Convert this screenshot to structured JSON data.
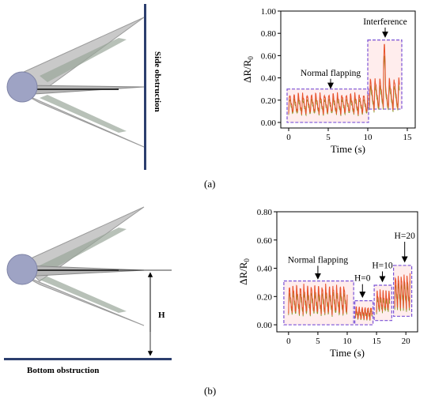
{
  "panel_labels": [
    "(a)",
    "(b)"
  ],
  "diagram_a": {
    "obstruction_label": "Side obstruction"
  },
  "diagram_b": {
    "obstruction_label": "Bottom obstruction",
    "height_label": "H"
  },
  "chart_data": [
    {
      "type": "line",
      "panel": "(a)",
      "xlabel": "Time (s)",
      "ylabel": "ΔR/R",
      "ylabel_sub": "0",
      "xlim": [
        -1,
        16
      ],
      "ylim": [
        -0.05,
        1.0
      ],
      "xticks": [
        0,
        5,
        10,
        15
      ],
      "yticks": [
        0.0,
        0.2,
        0.4,
        0.6,
        0.8,
        1.0
      ],
      "ytick_labels": [
        "0.00",
        "0.20",
        "0.40",
        "0.60",
        "0.80",
        "1.00"
      ],
      "colors": {
        "signal": "#e8502a",
        "signal_low": "#8c9a2a",
        "box": "#7a52d6"
      },
      "segments": [
        {
          "name": "Normal flapping",
          "x": [
            0,
            10
          ],
          "base": 0.08,
          "peak": 0.26,
          "period": 0.55,
          "box": [
            -0.2,
            0.0,
            10.1,
            0.3
          ]
        },
        {
          "name": "Interference",
          "x": [
            10.2,
            14.0
          ],
          "base": 0.12,
          "peak": 0.4,
          "period": 0.6,
          "spike": {
            "x": 12.1,
            "y": 0.74
          },
          "box": [
            10.0,
            0.12,
            14.3,
            0.74
          ]
        }
      ],
      "annotations": [
        {
          "text": "Normal flapping",
          "x": 5.3,
          "y": 0.42,
          "arrow_to": [
            5.3,
            0.3
          ]
        },
        {
          "text": "Interference",
          "x": 12.2,
          "y": 0.88,
          "arrow_to": [
            12.2,
            0.76
          ]
        }
      ]
    },
    {
      "type": "line",
      "panel": "(b)",
      "xlabel": "Time (s)",
      "ylabel": "ΔR/R",
      "ylabel_sub": "0",
      "xlim": [
        -2,
        22
      ],
      "ylim": [
        -0.05,
        0.8
      ],
      "xticks": [
        0,
        5,
        10,
        15,
        20
      ],
      "yticks": [
        0.0,
        0.2,
        0.4,
        0.6,
        0.8
      ],
      "ytick_labels": [
        "0.00",
        "0.20",
        "0.40",
        "0.60",
        "0.80"
      ],
      "colors": {
        "signal": "#e8502a",
        "signal_low": "#8c9a2a",
        "box": "#7a52d6"
      },
      "segments": [
        {
          "name": "Normal flapping",
          "x": [
            0,
            10
          ],
          "base": 0.08,
          "peak": 0.28,
          "period": 0.62,
          "box": [
            -0.8,
            0.0,
            11.1,
            0.31
          ]
        },
        {
          "name": "H=0",
          "x": [
            11.4,
            14.3
          ],
          "base": 0.04,
          "peak": 0.13,
          "period": 0.5,
          "box": [
            11.3,
            0.0,
            14.4,
            0.17
          ]
        },
        {
          "name": "H=10",
          "x": [
            15.0,
            17.3
          ],
          "base": 0.1,
          "peak": 0.24,
          "period": 0.5,
          "box": [
            14.6,
            0.03,
            17.6,
            0.28
          ]
        },
        {
          "name": "H=20",
          "x": [
            18.1,
            20.7
          ],
          "base": 0.12,
          "peak": 0.36,
          "period": 0.5,
          "box": [
            17.9,
            0.06,
            21.0,
            0.42
          ]
        }
      ],
      "annotations": [
        {
          "text": "Normal flapping",
          "x": 5.0,
          "y": 0.44,
          "arrow_to": [
            5.0,
            0.32
          ]
        },
        {
          "text": "H=0",
          "x": 12.6,
          "y": 0.31,
          "arrow_to": [
            12.6,
            0.19
          ]
        },
        {
          "text": "H=10",
          "x": 16.0,
          "y": 0.4,
          "arrow_to": [
            16.0,
            0.3
          ]
        },
        {
          "text": "H=20",
          "x": 19.8,
          "y": 0.61,
          "arrow_to": [
            19.8,
            0.44
          ]
        }
      ]
    }
  ]
}
